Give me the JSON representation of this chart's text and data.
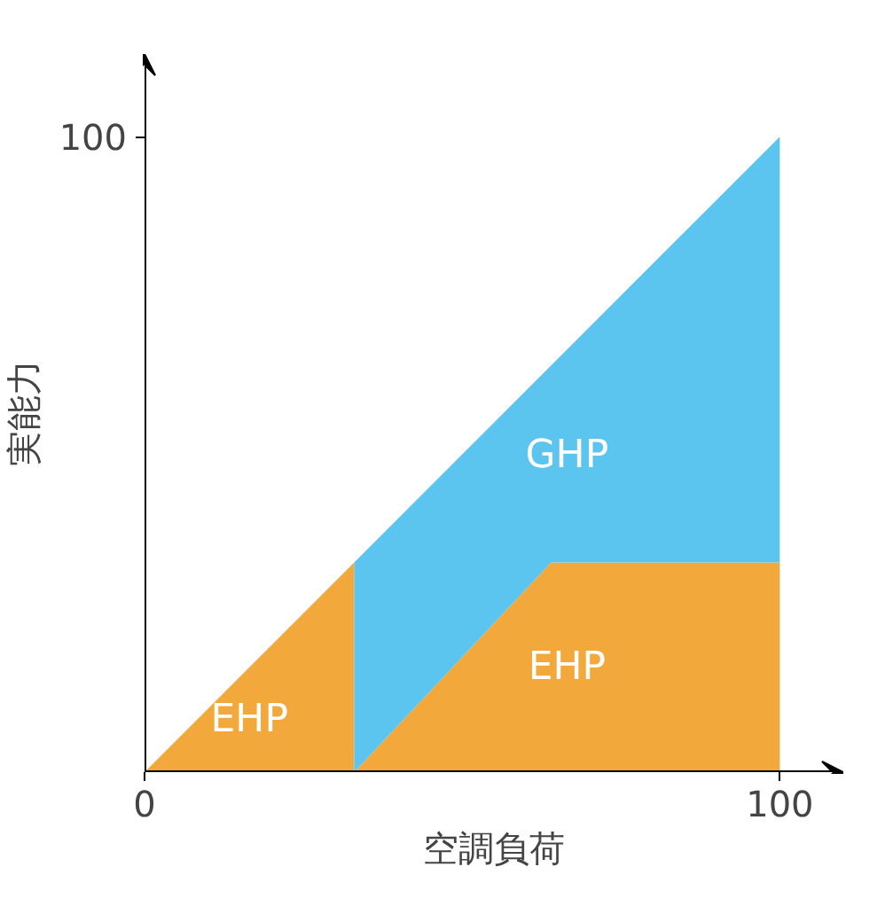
{
  "chart_data": {
    "type": "area",
    "stacked": true,
    "xlabel": "空調負荷",
    "ylabel": "実能力",
    "x": [
      0,
      33,
      33,
      64,
      100
    ],
    "series": [
      {
        "name": "EHP",
        "color": "#f3a83b",
        "values": [
          0,
          33,
          0,
          33,
          33
        ]
      },
      {
        "name": "GHP",
        "color": "#5bc5f0",
        "values": [
          0,
          0,
          33,
          31,
          67
        ]
      }
    ],
    "xlim": [
      0,
      110
    ],
    "ylim": [
      0,
      113
    ],
    "xticks": [
      0,
      100
    ],
    "yticks": [
      100
    ],
    "grid": false
  }
}
